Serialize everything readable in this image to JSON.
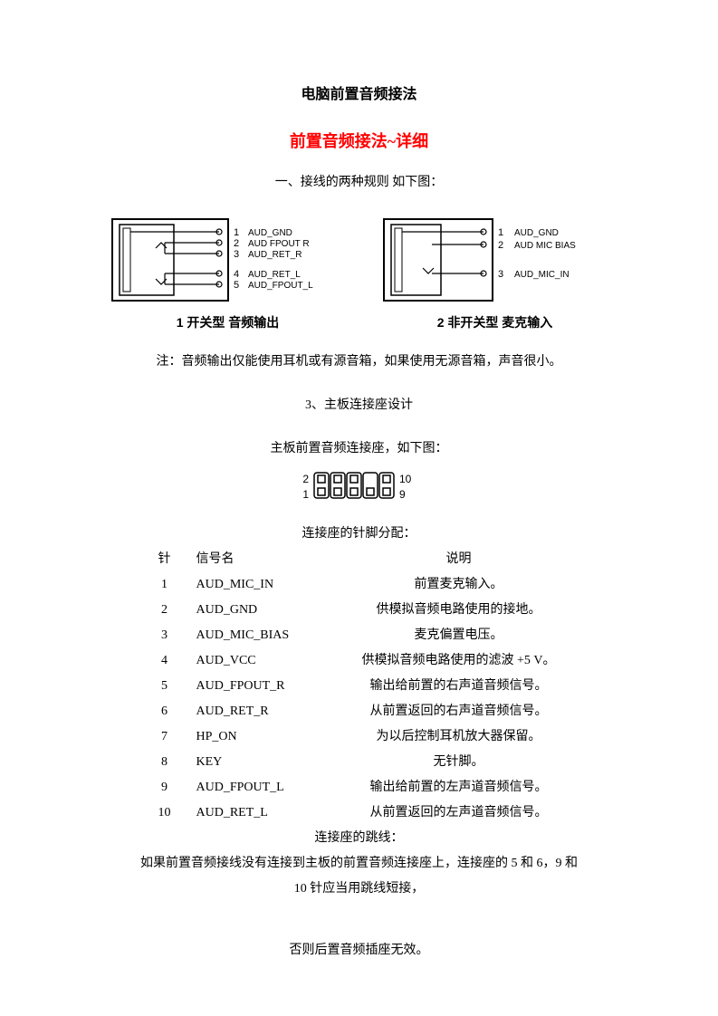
{
  "title_main": "电脑前置音频接法",
  "title_sub": "前置音频接法~详细",
  "intro": "一、接线的两种规则 如下图：",
  "diagram1": {
    "caption": "1 开关型 音频输出",
    "pins": [
      {
        "n": "1",
        "label": "AUD_GND"
      },
      {
        "n": "2",
        "label": "AUD FPOUT R"
      },
      {
        "n": "3",
        "label": "AUD_RET_R"
      },
      {
        "n": "4",
        "label": "AUD_RET_L"
      },
      {
        "n": "5",
        "label": "AUD_FPOUT_L"
      }
    ]
  },
  "diagram2": {
    "caption": "2 非开关型 麦克输入",
    "pins": [
      {
        "n": "1",
        "label": "AUD_GND"
      },
      {
        "n": "2",
        "label": "AUD MIC BIAS"
      },
      {
        "n": "3",
        "label": "AUD_MIC_IN"
      }
    ]
  },
  "note1": "注：音频输出仅能使用耳机或有源音箱，如果使用无源音箱，声音很小。",
  "note2": "3、主板连接座设计",
  "note3": "主板前置音频连接座，如下图：",
  "connector": {
    "left_top": "2",
    "left_bot": "1",
    "right_top": "10",
    "right_bot": "9"
  },
  "pin_table_title": "连接座的针脚分配：",
  "pin_table_header": {
    "c1": "针",
    "c2": "信号名",
    "c3": "说明"
  },
  "pins": [
    {
      "n": "1",
      "sig": "AUD_MIC_IN",
      "desc": "前置麦克输入。"
    },
    {
      "n": "2",
      "sig": "AUD_GND",
      "desc": "供模拟音频电路使用的接地。"
    },
    {
      "n": "3",
      "sig": "AUD_MIC_BIAS",
      "desc": "麦克偏置电压。"
    },
    {
      "n": "4",
      "sig": "AUD_VCC",
      "desc": "供模拟音频电路使用的滤波 +5 V。"
    },
    {
      "n": "5",
      "sig": "AUD_FPOUT_R",
      "desc": "输出给前置的右声道音频信号。"
    },
    {
      "n": "6",
      "sig": "AUD_RET_R",
      "desc": "从前置返回的右声道音频信号。"
    },
    {
      "n": "7",
      "sig": "HP_ON",
      "desc": "为以后控制耳机放大器保留。"
    },
    {
      "n": "8",
      "sig": "KEY",
      "desc": "无针脚。"
    },
    {
      "n": "9",
      "sig": "AUD_FPOUT_L",
      "desc": "输出给前置的左声道音频信号。"
    },
    {
      "n": "10",
      "sig": "AUD_RET_L",
      "desc": "从前置返回的左声道音频信号。"
    }
  ],
  "jumper_title": "连接座的跳线：",
  "jumper_p1": "如果前置音频接线没有连接到主板的前置音频连接座上，连接座的 5 和 6，9 和",
  "jumper_p2": "10 针应当用跳线短接，",
  "jumper_p3": "否则后置音频插座无效。",
  "colors": {
    "text": "#000000",
    "title_sub": "#ff0000",
    "bg": "#ffffff",
    "stroke": "#000000"
  }
}
